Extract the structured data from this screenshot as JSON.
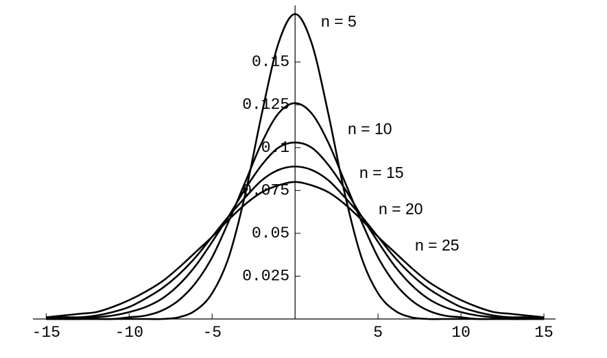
{
  "chart_data": {
    "type": "line",
    "x": [
      -15,
      -14,
      -13,
      -12,
      -11,
      -10,
      -9,
      -8,
      -7,
      -6,
      -5,
      -4,
      -3,
      -2,
      -1,
      0,
      1,
      2,
      3,
      4,
      5,
      6,
      7,
      8,
      9,
      10,
      11,
      12,
      13,
      14,
      15
    ],
    "series": [
      {
        "name": "n = 5",
        "color": "#000000",
        "values": [
          0,
          0,
          0,
          0,
          0,
          0,
          0,
          0,
          0.001,
          0.005,
          0.015,
          0.036,
          0.073,
          0.12,
          0.161,
          0.178,
          0.161,
          0.12,
          0.073,
          0.036,
          0.015,
          0.005,
          0.001,
          0,
          0,
          0,
          0,
          0,
          0,
          0,
          0
        ]
      },
      {
        "name": "n = 10",
        "color": "#000000",
        "values": [
          0,
          0,
          0,
          0,
          0,
          0.001,
          0.002,
          0.005,
          0.011,
          0.021,
          0.036,
          0.057,
          0.08,
          0.103,
          0.12,
          0.126,
          0.12,
          0.103,
          0.08,
          0.057,
          0.036,
          0.021,
          0.011,
          0.005,
          0.002,
          0.001,
          0,
          0,
          0,
          0,
          0
        ]
      },
      {
        "name": "n = 15",
        "color": "#000000",
        "values": [
          0,
          0,
          0,
          0.001,
          0.002,
          0.004,
          0.007,
          0.012,
          0.02,
          0.031,
          0.045,
          0.06,
          0.076,
          0.09,
          0.1,
          0.103,
          0.1,
          0.09,
          0.076,
          0.06,
          0.045,
          0.031,
          0.02,
          0.012,
          0.007,
          0.004,
          0.002,
          0.001,
          0,
          0,
          0
        ]
      },
      {
        "name": "n = 20",
        "color": "#000000",
        "values": [
          0,
          0.001,
          0.001,
          0.002,
          0.004,
          0.007,
          0.012,
          0.018,
          0.026,
          0.036,
          0.048,
          0.06,
          0.071,
          0.081,
          0.087,
          0.089,
          0.087,
          0.081,
          0.071,
          0.06,
          0.048,
          0.036,
          0.026,
          0.018,
          0.012,
          0.007,
          0.004,
          0.002,
          0.001,
          0.001,
          0
        ]
      },
      {
        "name": "n = 25",
        "color": "#000000",
        "values": [
          0.001,
          0.002,
          0.003,
          0.004,
          0.007,
          0.011,
          0.016,
          0.022,
          0.03,
          0.039,
          0.048,
          0.058,
          0.067,
          0.074,
          0.078,
          0.08,
          0.078,
          0.074,
          0.067,
          0.058,
          0.048,
          0.039,
          0.03,
          0.022,
          0.016,
          0.011,
          0.007,
          0.004,
          0.003,
          0.002,
          0.001
        ]
      }
    ],
    "xlim": [
      -15.8,
      15.7
    ],
    "ylim": [
      0,
      0.183
    ],
    "xticks": [
      -15,
      -10,
      -5,
      5,
      10,
      15
    ],
    "yticks": [
      0.025,
      0.05,
      0.075,
      0.1,
      0.125,
      0.15
    ]
  }
}
